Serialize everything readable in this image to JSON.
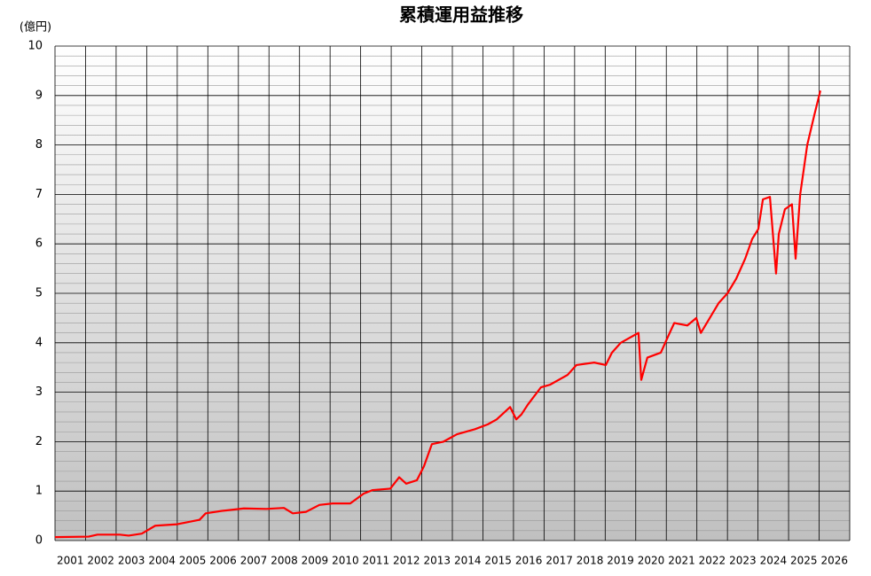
{
  "chart_data": {
    "type": "line",
    "title": "累積運用益推移",
    "y_label": "(億円)",
    "categories": [
      "2001",
      "2002",
      "2003",
      "2004",
      "2005",
      "2006",
      "2007",
      "2008",
      "2009",
      "2010",
      "2011",
      "2012",
      "2013",
      "2014",
      "2015",
      "2016",
      "2017",
      "2018",
      "2019",
      "2020",
      "2021",
      "2022",
      "2023",
      "2024",
      "2025",
      "2026"
    ],
    "xlim": [
      2001,
      2027
    ],
    "ylim": [
      0,
      10
    ],
    "yticks": [
      0,
      1,
      2,
      3,
      4,
      5,
      6,
      7,
      8,
      9,
      10
    ],
    "minor_divisions": 5,
    "grid": true,
    "x": [
      2001.0,
      2002.1,
      2002.39,
      2003.12,
      2003.41,
      2003.84,
      2004.28,
      2005.0,
      2005.73,
      2005.93,
      2006.46,
      2007.18,
      2007.91,
      2008.49,
      2008.78,
      2009.21,
      2009.65,
      2010.08,
      2010.66,
      2011.1,
      2011.39,
      2011.97,
      2012.26,
      2012.49,
      2012.84,
      2013.07,
      2013.33,
      2013.71,
      2014.15,
      2014.73,
      2015.16,
      2015.45,
      2015.89,
      2016.09,
      2016.26,
      2016.47,
      2016.9,
      2017.19,
      2017.77,
      2018.06,
      2018.64,
      2019.02,
      2019.22,
      2019.51,
      2019.8,
      2020.09,
      2020.18,
      2020.38,
      2020.82,
      2021.11,
      2021.26,
      2021.69,
      2021.98,
      2022.13,
      2022.42,
      2022.71,
      2023.0,
      2023.29,
      2023.58,
      2023.81,
      2024.01,
      2024.16,
      2024.39,
      2024.59,
      2024.68,
      2024.88,
      2025.11,
      2025.23,
      2025.38,
      2025.61,
      2025.84,
      2026.04
    ],
    "series": [
      {
        "color": "#ff0000",
        "values": [
          0.07,
          0.08,
          0.12,
          0.12,
          0.1,
          0.14,
          0.3,
          0.33,
          0.42,
          0.55,
          0.6,
          0.65,
          0.64,
          0.66,
          0.55,
          0.58,
          0.72,
          0.75,
          0.75,
          0.95,
          1.02,
          1.05,
          1.28,
          1.15,
          1.22,
          1.5,
          1.95,
          2.0,
          2.15,
          2.25,
          2.35,
          2.45,
          2.7,
          2.45,
          2.55,
          2.75,
          3.1,
          3.15,
          3.35,
          3.55,
          3.6,
          3.55,
          3.8,
          4.0,
          4.1,
          4.2,
          3.25,
          3.7,
          3.8,
          4.2,
          4.4,
          4.35,
          4.5,
          4.2,
          4.5,
          4.8,
          5.0,
          5.3,
          5.7,
          6.1,
          6.3,
          6.9,
          6.95,
          5.4,
          6.2,
          6.7,
          6.8,
          5.7,
          7.0,
          8.0,
          8.6,
          9.1
        ]
      }
    ]
  }
}
